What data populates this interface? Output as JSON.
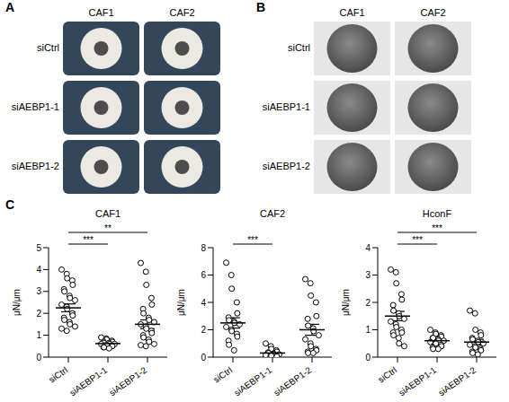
{
  "panels": [
    {
      "label": "A",
      "columns": [
        "CAF1",
        "CAF2"
      ],
      "rows": [
        "siCtrl",
        "siAEBP1-1",
        "siAEBP1-2"
      ]
    },
    {
      "label": "B",
      "columns": [
        "CAF1",
        "CAF2"
      ],
      "rows": [
        "siCtrl",
        "siAEBP1-1",
        "siAEBP1-2"
      ]
    },
    {
      "label": "C"
    }
  ],
  "chart_data": [
    {
      "type": "scatter",
      "title": "CAF1",
      "y_label": "μN/μm",
      "categories": [
        "siCtrl",
        "siAEBP1-1",
        "siAEBP1-2"
      ],
      "points": [
        [
          4.0,
          3.8,
          3.6,
          3.5,
          3.3,
          3.1,
          3.0,
          2.8,
          2.7,
          2.6,
          2.4,
          2.3,
          2.2,
          2.0,
          1.9,
          1.8,
          1.7,
          1.6,
          1.5,
          1.4,
          1.3,
          1.2
        ],
        [
          0.9,
          0.85,
          0.8,
          0.75,
          0.7,
          0.7,
          0.65,
          0.65,
          0.6,
          0.6,
          0.6,
          0.55,
          0.55,
          0.5,
          0.5,
          0.45,
          0.45,
          0.4
        ],
        [
          4.3,
          3.9,
          3.3,
          2.7,
          2.4,
          2.2,
          2.0,
          1.8,
          1.7,
          1.6,
          1.5,
          1.4,
          1.3,
          1.2,
          1.1,
          1.0,
          0.9,
          0.8,
          0.7,
          0.6,
          0.55,
          0.5
        ]
      ],
      "means": [
        2.25,
        0.62,
        1.5
      ],
      "sem": [
        0.18,
        0.04,
        0.2
      ],
      "significance": [
        {
          "pair": [
            "siCtrl",
            "siAEBP1-1"
          ],
          "label": "***"
        },
        {
          "pair": [
            "siCtrl",
            "siAEBP1-2"
          ],
          "label": "**"
        }
      ],
      "color": "#000000",
      "marker": "open_circle",
      "ylim": [
        0,
        5
      ],
      "yticks": [
        0,
        1,
        2,
        3,
        4,
        5
      ]
    },
    {
      "type": "scatter",
      "title": "CAF2",
      "y_label": "μN/μm",
      "categories": [
        "siCtrl",
        "siAEBP1-1",
        "siAEBP1-2"
      ],
      "points": [
        [
          6.9,
          6.0,
          5.0,
          4.0,
          3.2,
          2.9,
          2.7,
          2.6,
          2.5,
          2.4,
          2.2,
          2.0,
          1.9,
          1.7,
          1.5,
          1.2,
          0.9,
          0.5
        ],
        [
          1.0,
          0.8,
          0.6,
          0.5,
          0.4,
          0.35,
          0.3,
          0.25,
          0.2,
          0.2,
          0.15,
          0.1,
          0.1,
          0.05,
          0.05
        ],
        [
          5.7,
          5.4,
          4.5,
          4.0,
          3.0,
          2.8,
          2.3,
          2.1,
          1.9,
          1.6,
          1.3,
          1.0,
          0.8,
          0.6,
          0.5,
          0.4,
          0.3,
          0.3
        ]
      ],
      "means": [
        2.5,
        0.3,
        2.0
      ],
      "sem": [
        0.38,
        0.07,
        0.4
      ],
      "significance": [
        {
          "pair": [
            "siCtrl",
            "siAEBP1-1"
          ],
          "label": "***"
        }
      ],
      "color": "#000000",
      "marker": "open_circle",
      "ylim": [
        0,
        8
      ],
      "yticks": [
        0,
        2,
        4,
        6,
        8
      ]
    },
    {
      "type": "scatter",
      "title": "HconF",
      "y_label": "μN/μm",
      "categories": [
        "siCtrl",
        "siAEBP1-1",
        "siAEBP1-2"
      ],
      "points": [
        [
          3.2,
          3.1,
          2.7,
          2.3,
          2.1,
          1.9,
          1.7,
          1.6,
          1.5,
          1.4,
          1.3,
          1.2,
          1.1,
          1.0,
          0.9,
          0.9,
          0.8,
          0.7,
          0.5,
          0.4
        ],
        [
          1.0,
          0.9,
          0.85,
          0.8,
          0.75,
          0.7,
          0.7,
          0.65,
          0.6,
          0.6,
          0.55,
          0.5,
          0.5,
          0.45,
          0.4,
          0.35,
          0.3,
          0.3
        ],
        [
          1.7,
          1.6,
          1.0,
          0.9,
          0.8,
          0.7,
          0.65,
          0.6,
          0.55,
          0.5,
          0.45,
          0.4,
          0.35,
          0.3,
          0.25,
          0.2,
          0.15,
          0.1
        ]
      ],
      "means": [
        1.5,
        0.6,
        0.55
      ],
      "sem": [
        0.17,
        0.05,
        0.1
      ],
      "significance": [
        {
          "pair": [
            "siCtrl",
            "siAEBP1-1"
          ],
          "label": "***"
        },
        {
          "pair": [
            "siCtrl",
            "siAEBP1-2"
          ],
          "label": "***"
        }
      ],
      "color": "#000000",
      "marker": "open_circle",
      "ylim": [
        0,
        4
      ],
      "yticks": [
        0,
        1,
        2,
        3,
        4
      ]
    }
  ]
}
